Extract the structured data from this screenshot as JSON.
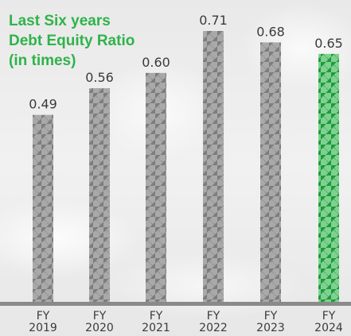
{
  "title_lines": [
    "Last Six years",
    "Debt Equity Ratio",
    "(in times)"
  ],
  "chart_data": {
    "type": "bar",
    "title": "Last Six years Debt Equity Ratio (in times)",
    "categories": [
      [
        "FY",
        "2019"
      ],
      [
        "FY",
        "2020"
      ],
      [
        "FY",
        "2021"
      ],
      [
        "FY",
        "2022"
      ],
      [
        "FY",
        "2023"
      ],
      [
        "FY",
        "2024"
      ]
    ],
    "values": [
      0.49,
      0.56,
      0.6,
      0.71,
      0.68,
      0.65
    ],
    "value_labels": [
      "0.49",
      "0.56",
      "0.60",
      "0.71",
      "0.68",
      "0.65"
    ],
    "ylim": [
      0,
      0.71
    ],
    "grid": false,
    "colors": {
      "bar": "#7d7d7d",
      "bar_light": "#a9a9a9",
      "highlight_bar": "#1f9a3a",
      "highlight_bar_light": "#7fd191",
      "title": "#2fb34a",
      "baseline": "#8a8a8a"
    },
    "highlight_index": 5
  }
}
